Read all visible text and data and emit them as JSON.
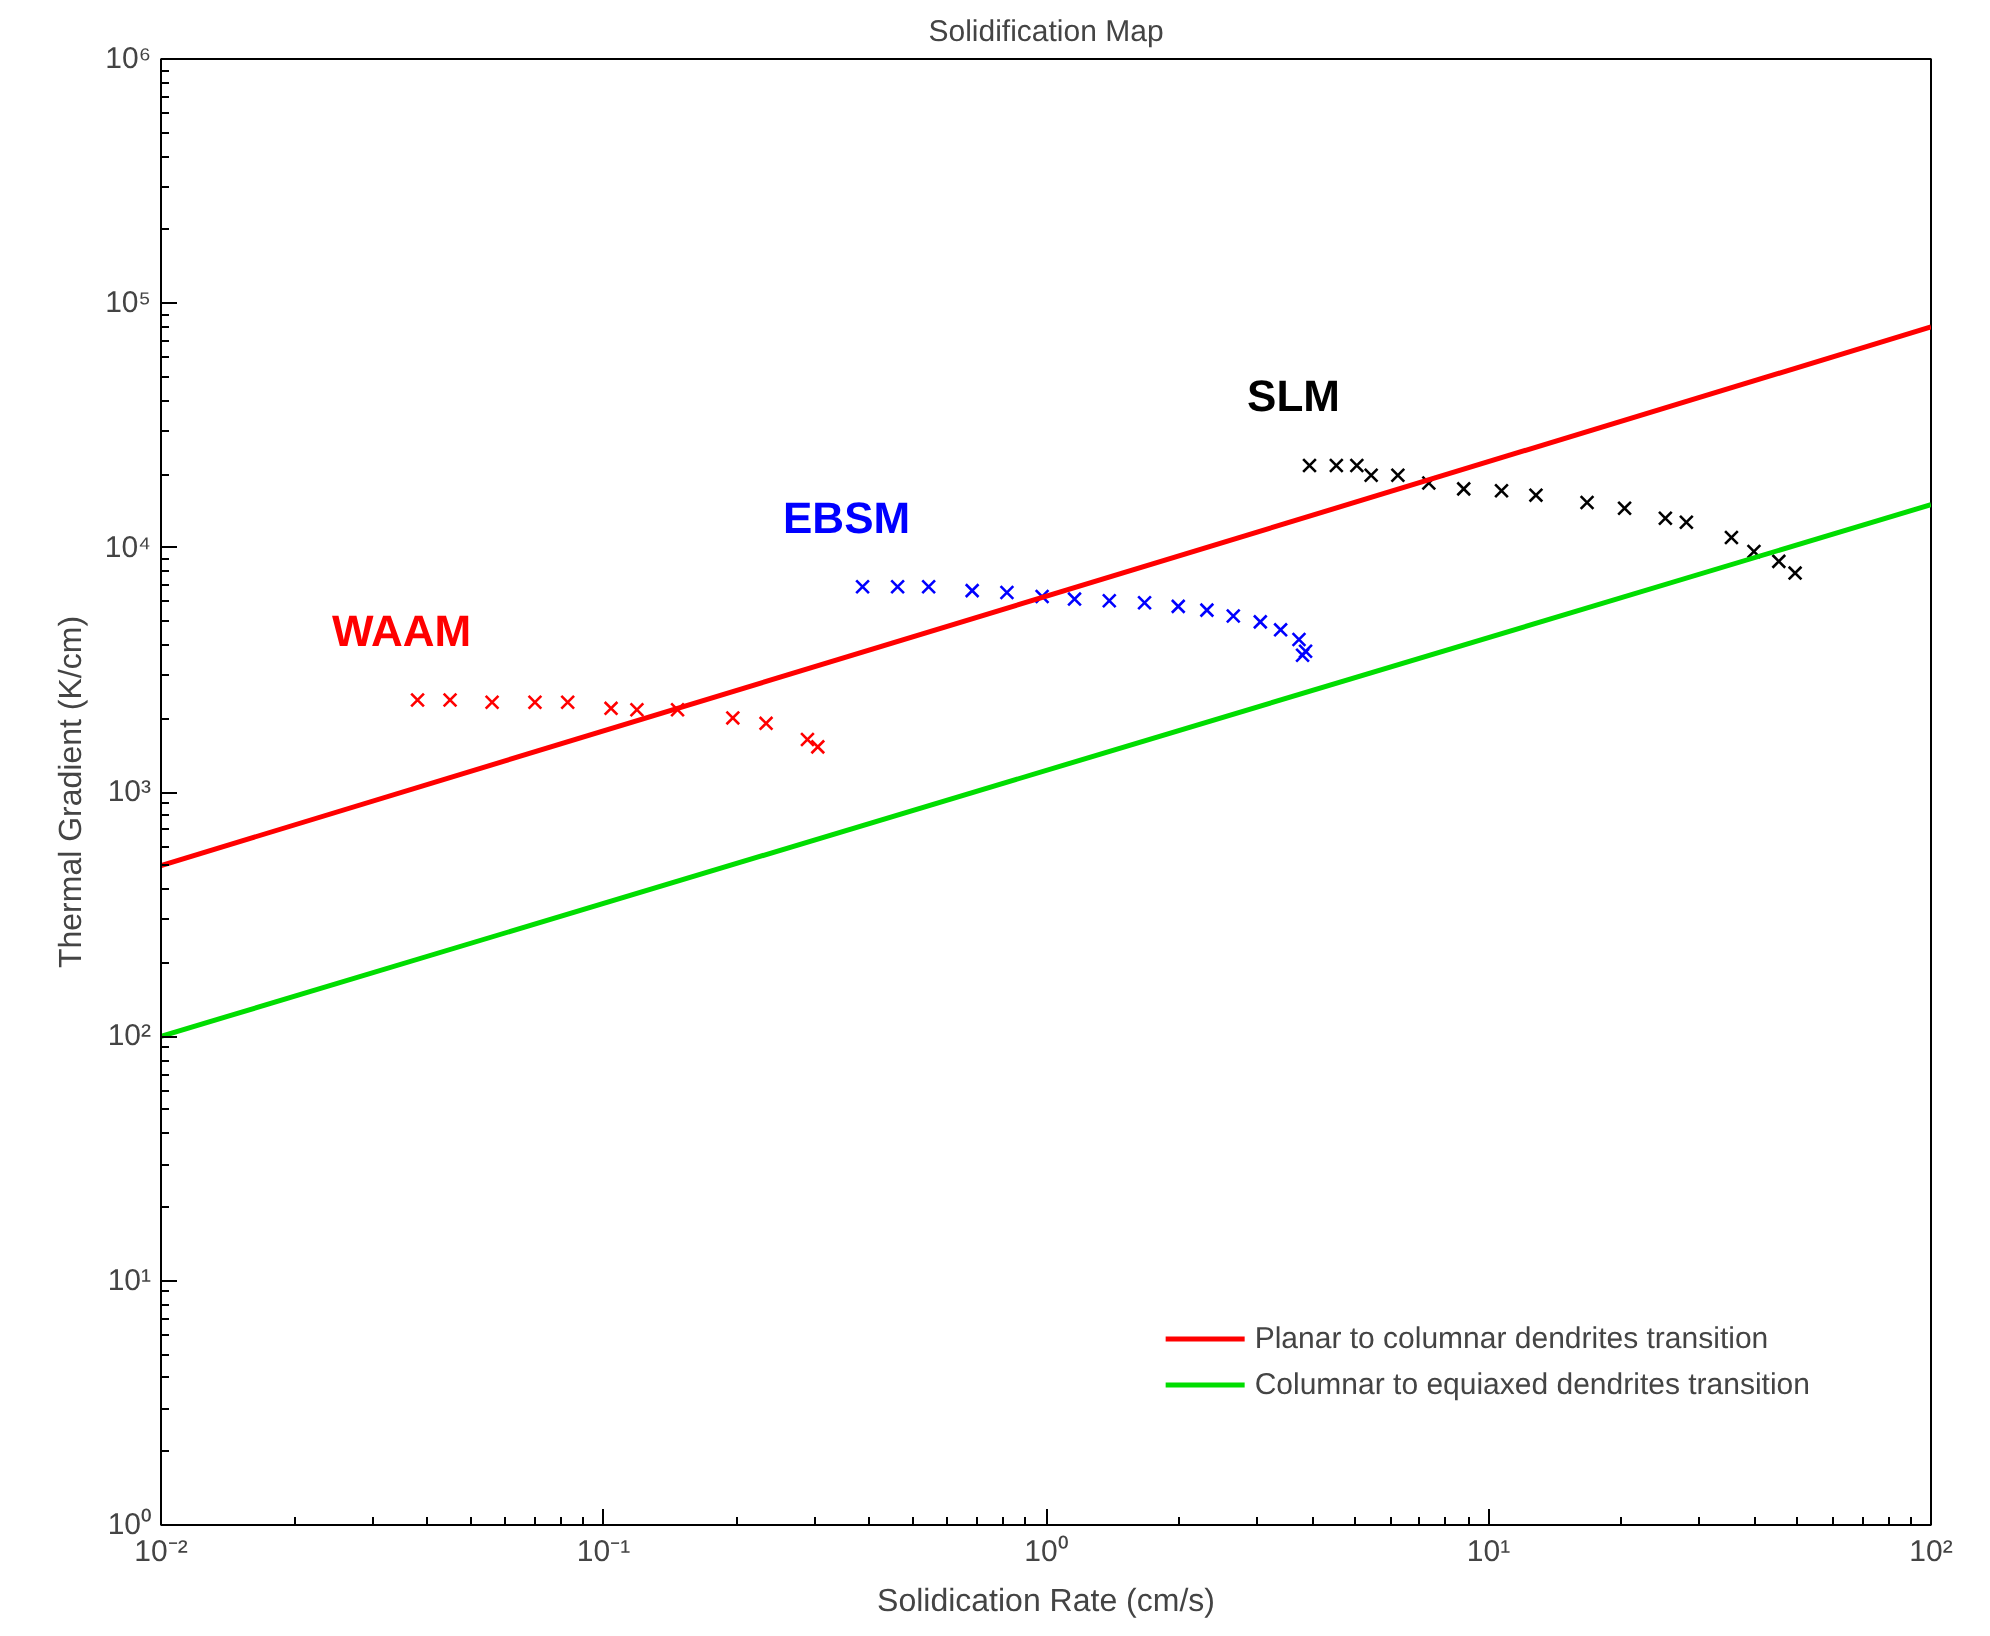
{
  "chart_data": {
    "type": "scatter",
    "title": "Solidification Map",
    "xlabel": "Solidication Rate (cm/s)",
    "ylabel": "Thermal Gradient (K/cm)",
    "log": "xy",
    "grid": false,
    "legend": "bottom right",
    "xlim": [
      0.01,
      100
    ],
    "ylim": [
      1,
      1000000
    ],
    "xticks": [
      {
        "value": 0.01,
        "label": "10⁻²"
      },
      {
        "value": 0.1,
        "label": "10⁻¹"
      },
      {
        "value": 1,
        "label": "10⁰"
      },
      {
        "value": 10,
        "label": "10¹"
      },
      {
        "value": 100,
        "label": "10²"
      }
    ],
    "yticks": [
      {
        "value": 1,
        "label": "10⁰"
      },
      {
        "value": 10,
        "label": "10¹"
      },
      {
        "value": 100,
        "label": "10²"
      },
      {
        "value": 1000,
        "label": "10³"
      },
      {
        "value": 10000,
        "label": "10⁴"
      },
      {
        "value": 100000,
        "label": "10⁵"
      },
      {
        "value": 1000000,
        "label": "10⁶"
      }
    ],
    "series": [
      {
        "name": "WAAM",
        "marker": "cross",
        "color": "#ff0000",
        "x": [
          0.038,
          0.045,
          0.056,
          0.07,
          0.083,
          0.104,
          0.119,
          0.147,
          0.196,
          0.233,
          0.289,
          0.305
        ],
        "values": [
          2380,
          2380,
          2330,
          2330,
          2330,
          2200,
          2170,
          2170,
          2010,
          1910,
          1640,
          1530
        ]
      },
      {
        "name": "EBSM",
        "marker": "cross",
        "color": "#0000ff",
        "x": [
          0.385,
          0.462,
          0.543,
          0.681,
          0.816,
          0.98,
          1.16,
          1.39,
          1.67,
          1.99,
          2.31,
          2.65,
          3.05,
          3.39,
          3.73,
          3.86,
          3.8
        ],
        "values": [
          6920,
          6920,
          6920,
          6670,
          6550,
          6310,
          6160,
          6060,
          5950,
          5750,
          5550,
          5250,
          4970,
          4610,
          4210,
          3770,
          3630
        ]
      },
      {
        "name": "SLM",
        "marker": "cross",
        "color": "#000000",
        "x": [
          3.94,
          4.53,
          5.04,
          5.43,
          6.24,
          7.33,
          8.79,
          10.7,
          12.8,
          16.7,
          20.3,
          25.1,
          28.0,
          35.4,
          39.8,
          45.3,
          49.3
        ],
        "values": [
          21700,
          21700,
          21700,
          19800,
          19800,
          18400,
          17400,
          17100,
          16400,
          15300,
          14500,
          13200,
          12700,
          11000,
          9640,
          8790,
          7870
        ]
      },
      {
        "name": "Planar to columnar dendrites transition",
        "type": "line",
        "marker": "none",
        "line_style": "solid",
        "color": "#ff0000",
        "x": [
          0.01,
          100
        ],
        "values": [
          500,
          80000
        ]
      },
      {
        "name": "Columnar to equiaxed dendrites transition",
        "type": "line",
        "marker": "none",
        "line_style": "solid",
        "color": "#00dd00",
        "x": [
          0.01,
          100
        ],
        "values": [
          100,
          15000
        ]
      }
    ]
  }
}
